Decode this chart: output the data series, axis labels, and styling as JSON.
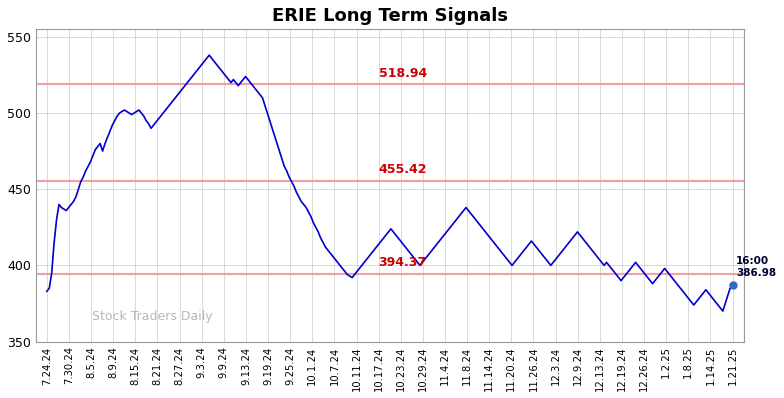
{
  "title": "ERIE Long Term Signals",
  "watermark": "Stock Traders Daily",
  "hlines": [
    518.94,
    455.42,
    394.37
  ],
  "hline_color": "#f0a0a0",
  "hline_labels": [
    "518.94",
    "455.42",
    "394.37"
  ],
  "hline_label_color": "#cc0000",
  "last_price": 386.98,
  "last_label": "16:00\n386.98",
  "line_color": "#0000cc",
  "last_dot_color": "#3366cc",
  "ylim": [
    350,
    555
  ],
  "yticks": [
    350,
    400,
    450,
    500,
    550
  ],
  "background_color": "#ffffff",
  "grid_color": "#cccccc",
  "xtick_labels": [
    "7.24.24",
    "7.30.24",
    "8.5.24",
    "8.9.24",
    "8.15.24",
    "8.21.24",
    "8.27.24",
    "9.3.24",
    "9.9.24",
    "9.13.24",
    "9.19.24",
    "9.25.24",
    "10.1.24",
    "10.7.24",
    "10.11.24",
    "10.17.24",
    "10.23.24",
    "10.29.24",
    "11.4.24",
    "11.8.24",
    "11.14.24",
    "11.20.24",
    "11.26.24",
    "12.3.24",
    "12.9.24",
    "12.13.24",
    "12.19.24",
    "12.26.24",
    "1.2.25",
    "1.8.25",
    "1.14.25",
    "1.21.25"
  ],
  "prices": [
    383,
    385,
    395,
    415,
    430,
    440,
    438,
    437,
    436,
    438,
    440,
    442,
    445,
    450,
    455,
    458,
    462,
    465,
    468,
    472,
    476,
    478,
    480,
    475,
    480,
    484,
    488,
    492,
    495,
    498,
    500,
    501,
    502,
    501,
    500,
    499,
    500,
    501,
    502,
    500,
    498,
    495,
    493,
    490,
    492,
    494,
    496,
    498,
    500,
    502,
    504,
    506,
    508,
    510,
    512,
    514,
    516,
    518,
    520,
    522,
    524,
    526,
    528,
    530,
    532,
    534,
    536,
    538,
    536,
    534,
    532,
    530,
    528,
    526,
    524,
    522,
    520,
    522,
    520,
    518,
    520,
    522,
    524,
    522,
    520,
    518,
    516,
    514,
    512,
    510,
    505,
    500,
    495,
    490,
    485,
    480,
    475,
    470,
    465,
    462,
    458,
    455,
    452,
    448,
    445,
    442,
    440,
    438,
    435,
    432,
    428,
    425,
    422,
    418,
    415,
    412,
    410,
    408,
    406,
    404,
    402,
    400,
    398,
    396,
    394,
    393,
    392,
    394,
    396,
    398,
    400,
    402,
    404,
    406,
    408,
    410,
    412,
    414,
    416,
    418,
    420,
    422,
    424,
    422,
    420,
    418,
    416,
    414,
    412,
    410,
    408,
    406,
    404,
    402,
    400,
    402,
    404,
    406,
    408,
    410,
    412,
    414,
    416,
    418,
    420,
    422,
    424,
    426,
    428,
    430,
    432,
    434,
    436,
    438,
    436,
    434,
    432,
    430,
    428,
    426,
    424,
    422,
    420,
    418,
    416,
    414,
    412,
    410,
    408,
    406,
    404,
    402,
    400,
    402,
    404,
    406,
    408,
    410,
    412,
    414,
    416,
    414,
    412,
    410,
    408,
    406,
    404,
    402,
    400,
    402,
    404,
    406,
    408,
    410,
    412,
    414,
    416,
    418,
    420,
    422,
    420,
    418,
    416,
    414,
    412,
    410,
    408,
    406,
    404,
    402,
    400,
    402,
    400,
    398,
    396,
    394,
    392,
    390,
    392,
    394,
    396,
    398,
    400,
    402,
    400,
    398,
    396,
    394,
    392,
    390,
    388,
    390,
    392,
    394,
    396,
    398,
    396,
    394,
    392,
    390,
    388,
    386,
    384,
    382,
    380,
    378,
    376,
    374,
    376,
    378,
    380,
    382,
    384,
    382,
    380,
    378,
    376,
    374,
    372,
    370,
    375,
    380,
    385,
    387
  ]
}
